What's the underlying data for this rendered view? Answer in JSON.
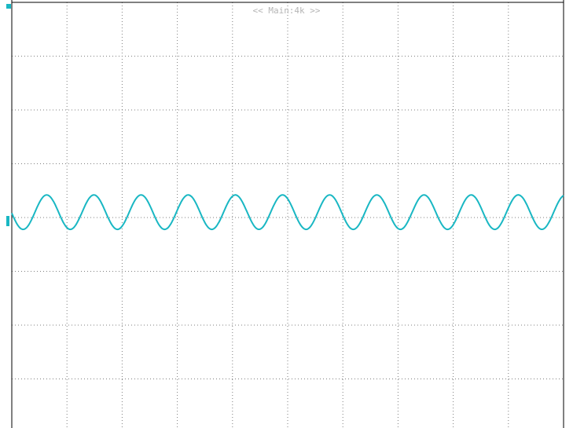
{
  "record_label": "<< Main:4k >>",
  "colors": {
    "background": "#ffffff",
    "frame": "#000000",
    "grid": "#7f7f7f",
    "trace": "#19b7c3",
    "marker": "#19b7c3"
  },
  "display": {
    "horizontal_divisions": 10,
    "vertical_divisions": 8
  },
  "chart_data": {
    "type": "line",
    "xlim": [
      0,
      10
    ],
    "ylim": [
      -4,
      4
    ],
    "grid": true,
    "series": [
      {
        "function": "sine",
        "cycles": 11.7,
        "amplitude_div": 0.32,
        "offset_div": 0.1,
        "phase_rad": 3.2,
        "x_start_div": 0,
        "x_end_div": 10
      }
    ]
  }
}
